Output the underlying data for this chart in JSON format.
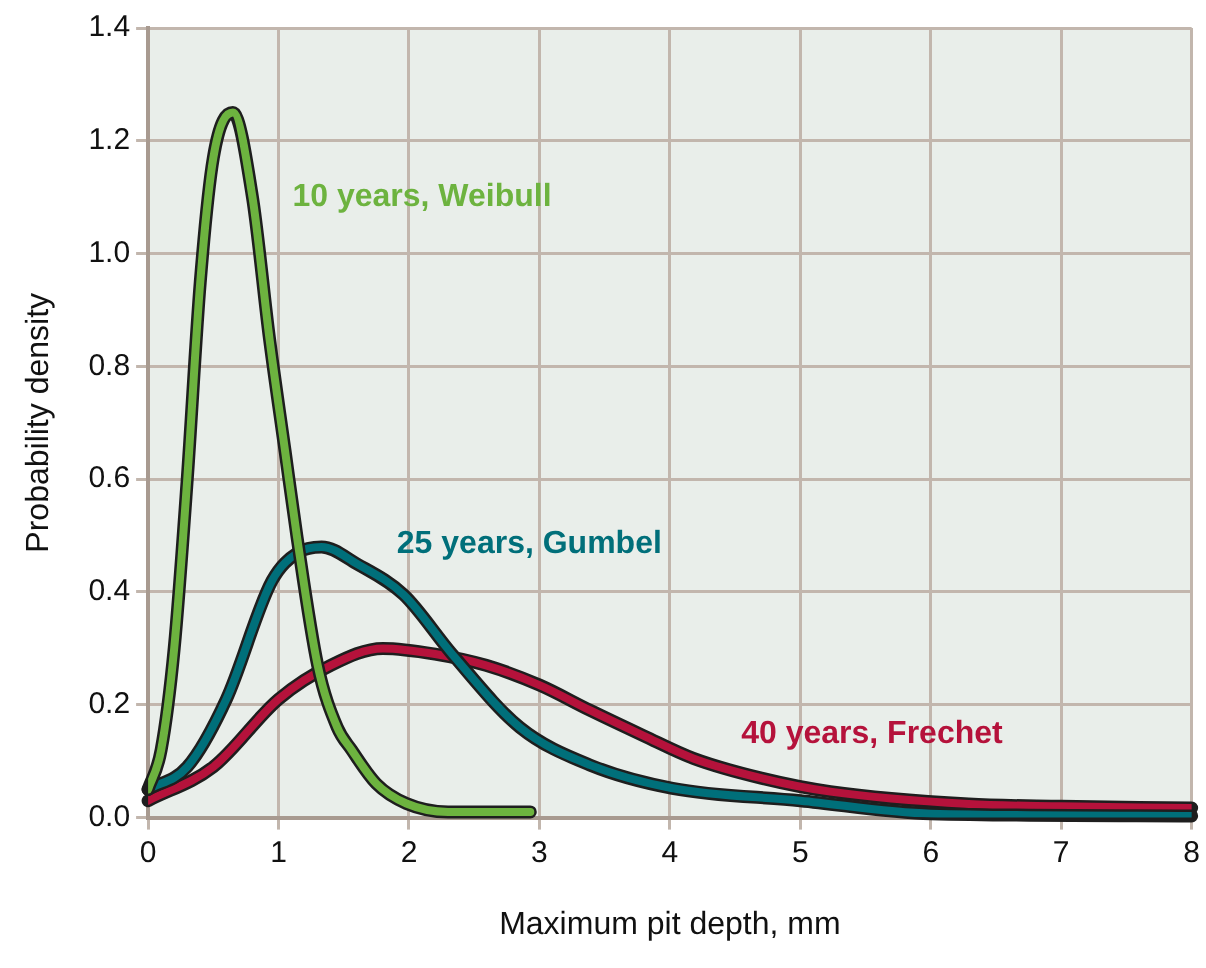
{
  "chart_data": {
    "type": "line",
    "xlabel": "Maximum pit depth, mm",
    "ylabel": "Probability density",
    "xlim": [
      0,
      8
    ],
    "xticks": [
      0,
      1,
      2,
      3,
      4,
      5,
      6,
      7,
      8
    ],
    "ylim": [
      0,
      1.4
    ],
    "yticks": [
      {
        "value": 0,
        "label": "0.0"
      },
      {
        "value": 0.2,
        "label": "0.2"
      },
      {
        "value": 0.4,
        "label": "0.4"
      },
      {
        "value": 0.6,
        "label": "0.6"
      },
      {
        "value": 0.8,
        "label": "0.8"
      },
      {
        "value": 1.0,
        "label": "1.0"
      },
      {
        "value": 1.2,
        "label": "1.2"
      },
      {
        "value": 1.4,
        "label": "1.4"
      }
    ],
    "grid": true,
    "legend": false,
    "marker": "none",
    "line_style": "solid",
    "series": [
      {
        "name": "10 years, Weibull",
        "color": "#6db33f",
        "x": [
          0,
          0.1,
          0.2,
          0.3,
          0.4,
          0.5,
          0.65,
          0.8,
          0.93,
          1.05,
          1.14,
          1.3,
          1.45,
          1.56,
          1.75,
          1.98,
          2.3,
          2.93
        ],
        "values": [
          0.05,
          0.12,
          0.3,
          0.6,
          0.95,
          1.17,
          1.25,
          1.1,
          0.85,
          0.65,
          0.5,
          0.27,
          0.16,
          0.12,
          0.06,
          0.025,
          0.01,
          0.01
        ]
      },
      {
        "name": "25 years, Gumbel",
        "color": "#006f7a",
        "x": [
          0,
          0.3,
          0.6,
          0.95,
          1.15,
          1.33,
          1.6,
          1.96,
          2.33,
          2.85,
          3.39,
          4.02,
          5,
          6,
          8
        ],
        "values": [
          0.05,
          0.09,
          0.21,
          0.42,
          0.47,
          0.48,
          0.45,
          0.395,
          0.29,
          0.16,
          0.093,
          0.052,
          0.03,
          0.007,
          0.003
        ]
      },
      {
        "name": "40 years, Frechet",
        "color": "#b5123b",
        "x": [
          0,
          0.5,
          1.0,
          1.4,
          1.8,
          2.2,
          2.59,
          3,
          3.39,
          3.8,
          4.18,
          4.7,
          5.23,
          6.29,
          7,
          8
        ],
        "values": [
          0.03,
          0.09,
          0.21,
          0.27,
          0.3,
          0.29,
          0.27,
          0.235,
          0.19,
          0.145,
          0.105,
          0.07,
          0.046,
          0.024,
          0.02,
          0.017
        ]
      }
    ]
  }
}
